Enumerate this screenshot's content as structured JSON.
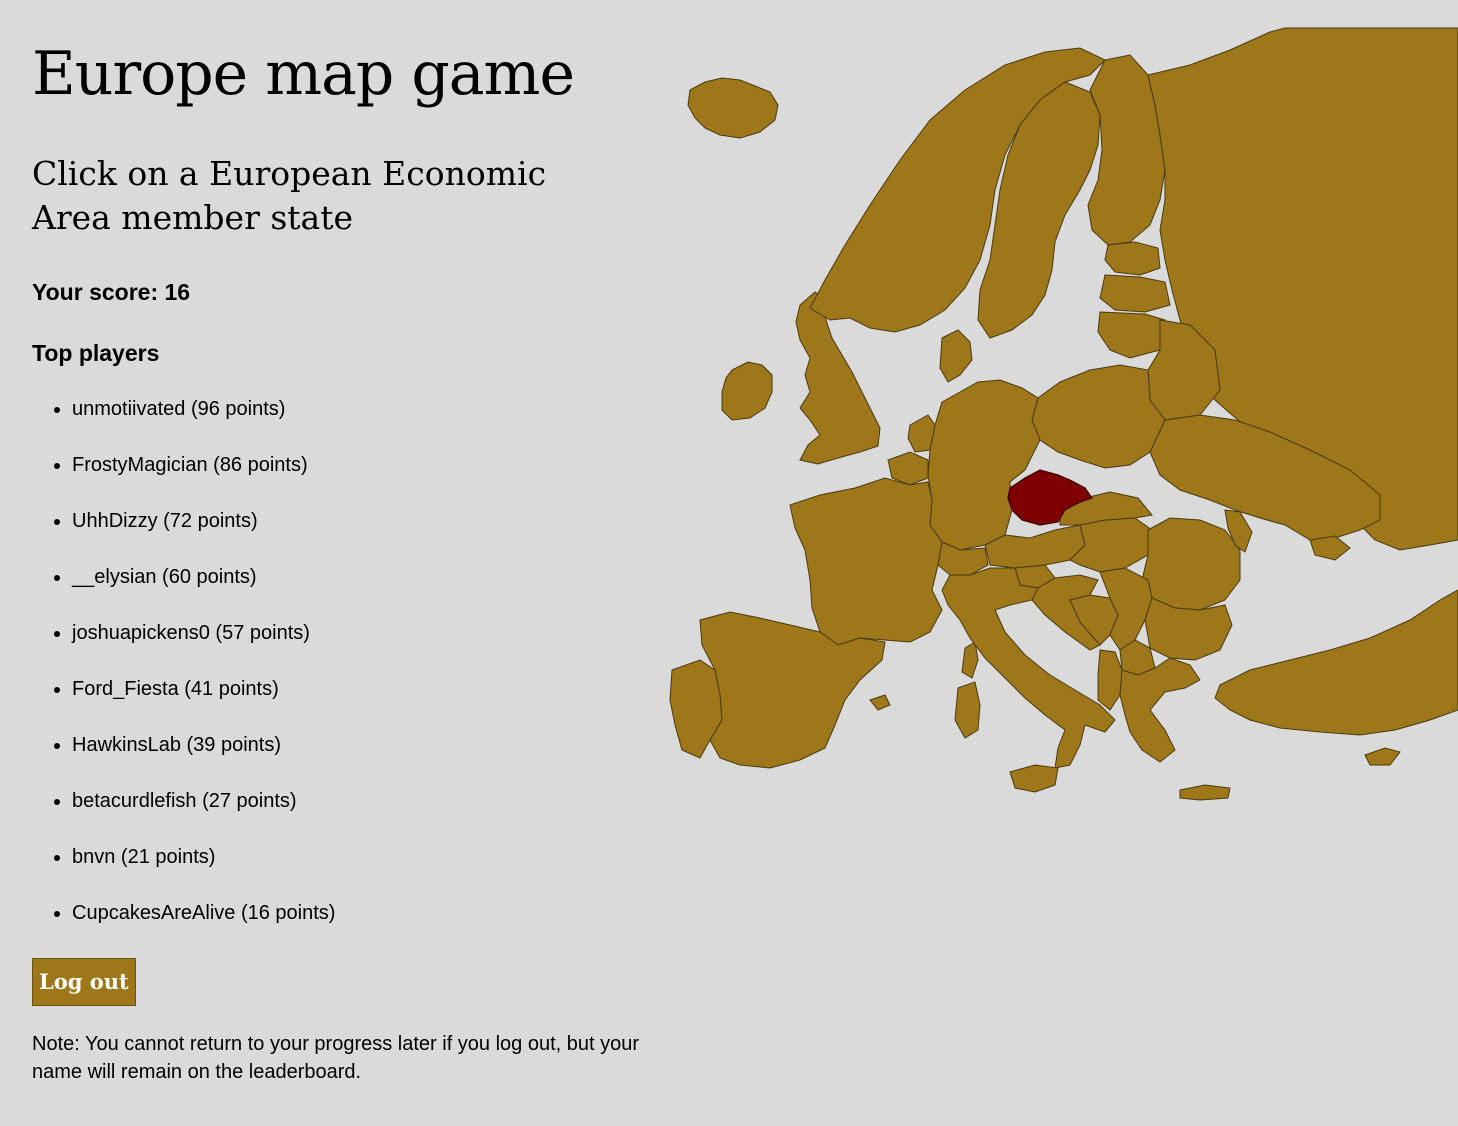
{
  "title": "Europe map game",
  "prompt": "Click on a European Economic Area member state",
  "score_label": "Your score: 16",
  "top_players_heading": "Top players",
  "players": [
    "unmotiivated (96 points)",
    "FrostyMagician (86 points)",
    "UhhDizzy (72 points)",
    "__elysian (60 points)",
    "joshuapickens0 (57 points)",
    "Ford_Fiesta (41 points)",
    "HawkinsLab (39 points)",
    "betacurdlefish (27 points)",
    "bnvn (21 points)",
    "CupcakesAreAlive (16 points)"
  ],
  "logout_label": "Log out",
  "note": "Note: You cannot return to your progress later if you log out, but your name will remain on the leaderboard.",
  "colors": {
    "land": "#9d771a",
    "selected": "#7f0000",
    "background": "#dadada"
  }
}
